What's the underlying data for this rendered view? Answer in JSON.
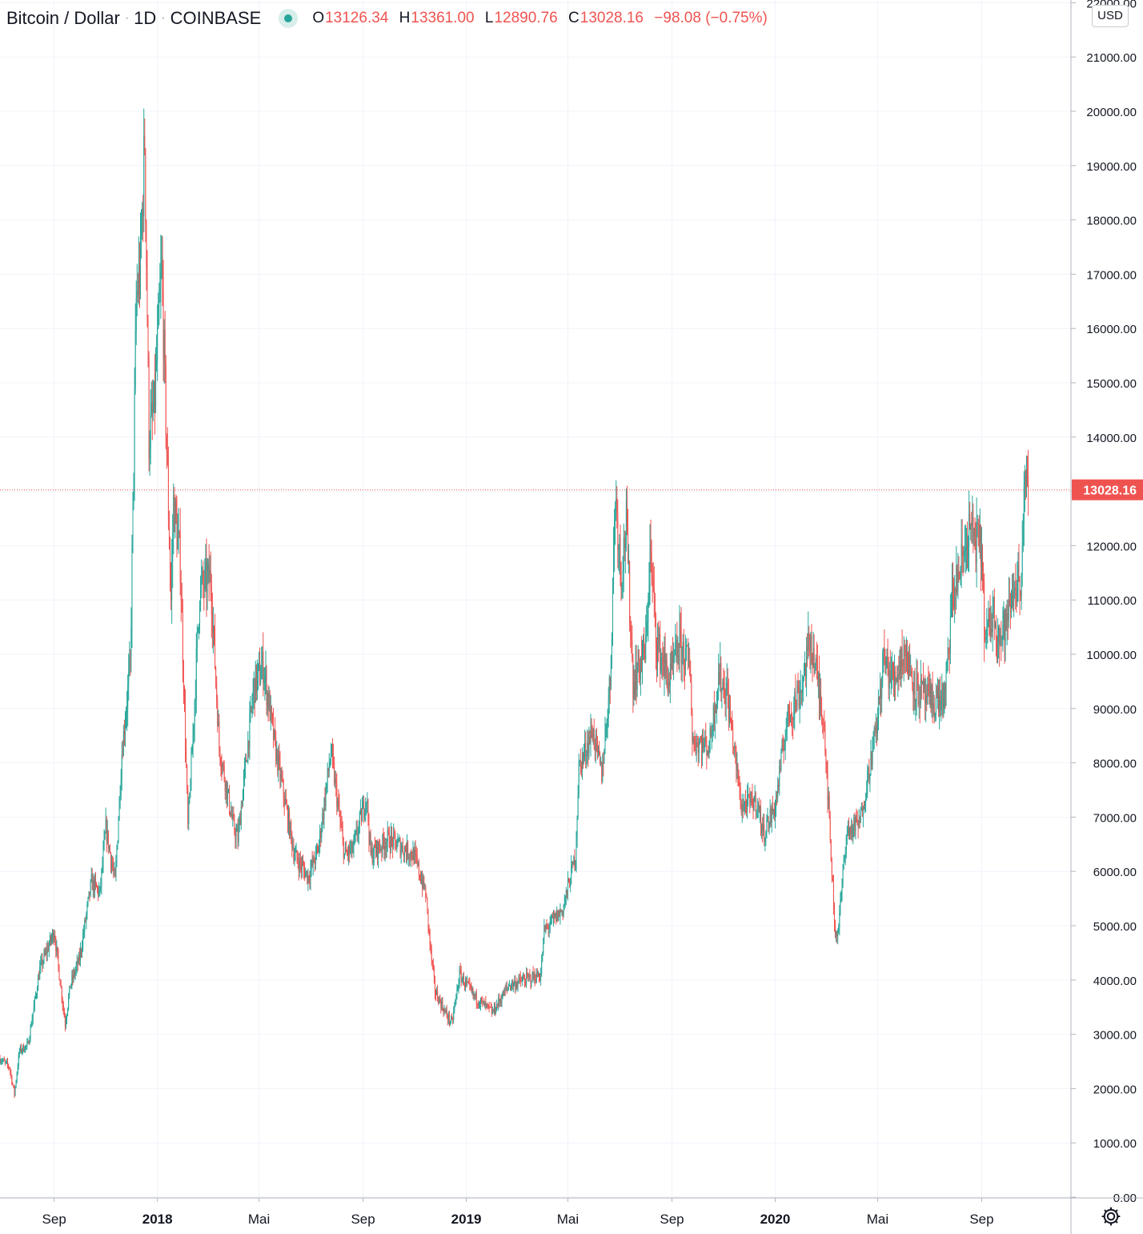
{
  "header": {
    "symbol": "Bitcoin / Dollar",
    "interval": "1D",
    "exchange": "COINBASE",
    "open_label": "O",
    "open": "13126.34",
    "high_label": "H",
    "high": "13361.00",
    "low_label": "L",
    "low": "12890.76",
    "close_label": "C",
    "close": "13028.16",
    "change": "−98.08 (−0.75%)"
  },
  "currency_button": "USD",
  "icons": {
    "settings": "gear-icon",
    "status": "market-status-dot"
  },
  "colors": {
    "up": "#26a69a",
    "down": "#ef5350",
    "grid": "#f0f3fa",
    "axis_text": "#131722",
    "price_line": "#ef5350"
  },
  "chart_data": {
    "type": "line",
    "title": "Bitcoin / Dollar",
    "style": "candlestick",
    "x_range": [
      "2017-06-29",
      "2020-12-10"
    ],
    "ylim": [
      0,
      22000
    ],
    "ytick_values": [
      0,
      1000,
      2000,
      3000,
      4000,
      5000,
      6000,
      7000,
      8000,
      9000,
      10000,
      11000,
      12000,
      13000,
      14000,
      15000,
      16000,
      17000,
      18000,
      19000,
      20000,
      21000,
      22000
    ],
    "ytick_labels": [
      "0.00",
      "1000.00",
      "2000.00",
      "3000.00",
      "4000.00",
      "5000.00",
      "6000.00",
      "7000.00",
      "8000.00",
      "9000.00",
      "10000.00",
      "11000.00",
      "12000.00",
      "13000.00",
      "14000.00",
      "15000.00",
      "16000.00",
      "17000.00",
      "18000.00",
      "19000.00",
      "20000.00",
      "21000.00",
      "22000.00"
    ],
    "xticks": [
      {
        "date": "2017-09-01",
        "label": "Sep",
        "bold": false
      },
      {
        "date": "2018-01-01",
        "label": "2018",
        "bold": true
      },
      {
        "date": "2018-05-01",
        "label": "Mai",
        "bold": false
      },
      {
        "date": "2018-09-01",
        "label": "Sep",
        "bold": false
      },
      {
        "date": "2019-01-01",
        "label": "2019",
        "bold": true
      },
      {
        "date": "2019-05-01",
        "label": "Mai",
        "bold": false
      },
      {
        "date": "2019-09-01",
        "label": "Sep",
        "bold": false
      },
      {
        "date": "2020-01-01",
        "label": "2020",
        "bold": true
      },
      {
        "date": "2020-05-01",
        "label": "Mai",
        "bold": false
      },
      {
        "date": "2020-09-01",
        "label": "Sep",
        "bold": false
      }
    ],
    "last_price": 13028.16,
    "last_price_label": "13028.16",
    "grid": true,
    "series": [
      {
        "values_kind": "approximate daily close path (date, price)",
        "points": [
          [
            "2017-06-29",
            2550
          ],
          [
            "2017-07-10",
            2400
          ],
          [
            "2017-07-16",
            1900
          ],
          [
            "2017-07-22",
            2700
          ],
          [
            "2017-08-01",
            2800
          ],
          [
            "2017-08-15",
            4200
          ],
          [
            "2017-09-01",
            4900
          ],
          [
            "2017-09-14",
            3200
          ],
          [
            "2017-09-20",
            3900
          ],
          [
            "2017-10-01",
            4400
          ],
          [
            "2017-10-15",
            5800
          ],
          [
            "2017-10-25",
            5600
          ],
          [
            "2017-11-01",
            6800
          ],
          [
            "2017-11-12",
            5800
          ],
          [
            "2017-11-20",
            8200
          ],
          [
            "2017-11-30",
            9800
          ],
          [
            "2017-12-07",
            16500
          ],
          [
            "2017-12-12",
            17200
          ],
          [
            "2017-12-17",
            19500
          ],
          [
            "2017-12-22",
            14000
          ],
          [
            "2017-12-28",
            14500
          ],
          [
            "2018-01-06",
            17100
          ],
          [
            "2018-01-12",
            13800
          ],
          [
            "2018-01-17",
            11000
          ],
          [
            "2018-01-20",
            12800
          ],
          [
            "2018-01-28",
            11700
          ],
          [
            "2018-02-06",
            6800
          ],
          [
            "2018-02-12",
            8500
          ],
          [
            "2018-02-20",
            11200
          ],
          [
            "2018-03-05",
            11400
          ],
          [
            "2018-03-15",
            8300
          ],
          [
            "2018-04-01",
            6800
          ],
          [
            "2018-04-06",
            6600
          ],
          [
            "2018-04-25",
            9400
          ],
          [
            "2018-05-06",
            9800
          ],
          [
            "2018-05-20",
            8300
          ],
          [
            "2018-06-12",
            6300
          ],
          [
            "2018-06-28",
            5900
          ],
          [
            "2018-07-10",
            6400
          ],
          [
            "2018-07-25",
            8200
          ],
          [
            "2018-08-10",
            6300
          ],
          [
            "2018-08-20",
            6400
          ],
          [
            "2018-09-05",
            7400
          ],
          [
            "2018-09-10",
            6300
          ],
          [
            "2018-10-01",
            6600
          ],
          [
            "2018-10-31",
            6300
          ],
          [
            "2018-11-14",
            5600
          ],
          [
            "2018-11-20",
            4500
          ],
          [
            "2018-11-25",
            3800
          ],
          [
            "2018-12-07",
            3400
          ],
          [
            "2018-12-15",
            3200
          ],
          [
            "2018-12-24",
            4100
          ],
          [
            "2019-01-10",
            3700
          ],
          [
            "2019-02-01",
            3400
          ],
          [
            "2019-02-20",
            3900
          ],
          [
            "2019-03-30",
            4100
          ],
          [
            "2019-04-03",
            4900
          ],
          [
            "2019-04-25",
            5300
          ],
          [
            "2019-05-10",
            6300
          ],
          [
            "2019-05-14",
            7900
          ],
          [
            "2019-05-30",
            8600
          ],
          [
            "2019-06-10",
            7800
          ],
          [
            "2019-06-20",
            9500
          ],
          [
            "2019-06-26",
            13000
          ],
          [
            "2019-07-03",
            11500
          ],
          [
            "2019-07-09",
            12400
          ],
          [
            "2019-07-17",
            9500
          ],
          [
            "2019-08-01",
            10100
          ],
          [
            "2019-08-06",
            11900
          ],
          [
            "2019-08-14",
            10200
          ],
          [
            "2019-08-29",
            9500
          ],
          [
            "2019-09-10",
            10200
          ],
          [
            "2019-09-23",
            9700
          ],
          [
            "2019-09-25",
            8400
          ],
          [
            "2019-10-15",
            8300
          ],
          [
            "2019-10-26",
            9600
          ],
          [
            "2019-11-05",
            9300
          ],
          [
            "2019-11-22",
            7200
          ],
          [
            "2019-12-10",
            7300
          ],
          [
            "2019-12-18",
            6700
          ],
          [
            "2020-01-01",
            7200
          ],
          [
            "2020-01-15",
            8800
          ],
          [
            "2020-02-01",
            9400
          ],
          [
            "2020-02-12",
            10300
          ],
          [
            "2020-02-28",
            8700
          ],
          [
            "2020-03-12",
            4800
          ],
          [
            "2020-03-16",
            5000
          ],
          [
            "2020-03-25",
            6700
          ],
          [
            "2020-04-10",
            6900
          ],
          [
            "2020-04-30",
            8700
          ],
          [
            "2020-05-08",
            9900
          ],
          [
            "2020-05-20",
            9500
          ],
          [
            "2020-06-01",
            10100
          ],
          [
            "2020-06-15",
            9400
          ],
          [
            "2020-07-01",
            9100
          ],
          [
            "2020-07-20",
            9200
          ],
          [
            "2020-07-28",
            11000
          ],
          [
            "2020-08-10",
            11800
          ],
          [
            "2020-08-17",
            12300
          ],
          [
            "2020-09-01",
            11900
          ],
          [
            "2020-09-05",
            10200
          ],
          [
            "2020-09-15",
            10800
          ],
          [
            "2020-09-23",
            10300
          ],
          [
            "2020-10-01",
            10600
          ],
          [
            "2020-10-10",
            11300
          ],
          [
            "2020-10-17",
            11350
          ],
          [
            "2020-10-21",
            12900
          ],
          [
            "2020-10-26",
            13028
          ]
        ]
      }
    ]
  }
}
